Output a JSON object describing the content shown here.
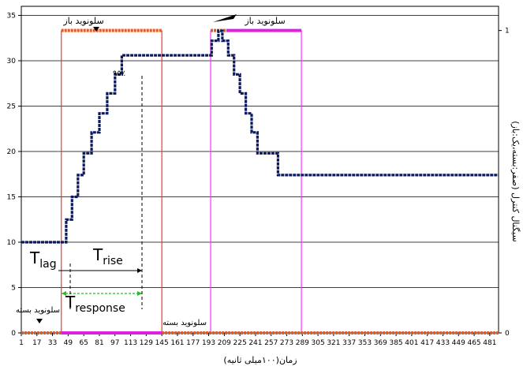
{
  "chart_data": {
    "type": "line",
    "xlabel": "زمان(۱۰۰میلی ثانیه)",
    "y2label": "سیگنال کنترل (صفر:بسته،یک:باز)",
    "ylim": [
      0,
      36
    ],
    "y2lim": [
      0,
      1.08
    ],
    "yticks": [
      0,
      5,
      10,
      15,
      20,
      25,
      30,
      35
    ],
    "y2ticks": [
      0,
      1
    ],
    "xticks": [
      "1",
      "17",
      "33",
      "49",
      "65",
      "81",
      "97",
      "113",
      "129",
      "145",
      "161",
      "177",
      "193",
      "209",
      "225",
      "241",
      "257",
      "273",
      "289",
      "305",
      "321",
      "337",
      "353",
      "369",
      "385",
      "401",
      "417",
      "433",
      "449",
      "465",
      "481"
    ],
    "xlim": [
      1,
      490
    ],
    "grid": "horizontal",
    "series": [
      {
        "role": "response",
        "color": "#0b1a5e",
        "points": [
          [
            1,
            10
          ],
          [
            42,
            10
          ],
          [
            47,
            10
          ],
          [
            47,
            12.5
          ],
          [
            53,
            12.5
          ],
          [
            53,
            15
          ],
          [
            59,
            15
          ],
          [
            59,
            17.4
          ],
          [
            65,
            17.4
          ],
          [
            65,
            19.8
          ],
          [
            73,
            19.8
          ],
          [
            73,
            22.1
          ],
          [
            81,
            22.1
          ],
          [
            81,
            24.2
          ],
          [
            89,
            24.2
          ],
          [
            89,
            26.4
          ],
          [
            97,
            26.4
          ],
          [
            97,
            28.5
          ],
          [
            104,
            28.5
          ],
          [
            104,
            30.6
          ],
          [
            187,
            30.6
          ],
          [
            196,
            30.6
          ],
          [
            196,
            32.2
          ],
          [
            203,
            32.2
          ],
          [
            203,
            33.3
          ],
          [
            207,
            33.3
          ],
          [
            207,
            32.2
          ],
          [
            213,
            32.2
          ],
          [
            213,
            30.6
          ],
          [
            219,
            30.6
          ],
          [
            219,
            28.5
          ],
          [
            225,
            28.5
          ],
          [
            225,
            26.4
          ],
          [
            231,
            26.4
          ],
          [
            231,
            24.2
          ],
          [
            237,
            24.2
          ],
          [
            237,
            22.1
          ],
          [
            243,
            22.1
          ],
          [
            243,
            19.8
          ],
          [
            264,
            19.8
          ],
          [
            264,
            17.4
          ],
          [
            490,
            17.4
          ]
        ]
      },
      {
        "role": "signal",
        "color": "#e85a20",
        "segments": [
          [
            [
              1,
              0
            ],
            [
              42,
              0
            ]
          ],
          [
            [
              42,
              1
            ],
            [
              145,
              1
            ]
          ],
          [
            [
              145,
              0
            ],
            [
              490,
              0
            ]
          ],
          [
            [
              187,
              0
            ],
            [
              195,
              0
            ]
          ],
          [
            [
              195,
              1
            ],
            [
              211,
              1
            ]
          ]
        ]
      },
      {
        "role": "signal-2",
        "color": "#e020e0",
        "segments": [
          [
            [
              42,
              0
            ],
            [
              145,
              0
            ]
          ],
          [
            [
              211,
              1
            ],
            [
              288,
              1
            ]
          ]
        ]
      }
    ],
    "vlines": [
      {
        "x": 42,
        "color": "#ff3030"
      },
      {
        "x": 145,
        "color": "#ff3030"
      },
      {
        "x": 195,
        "color": "#ff30ff"
      },
      {
        "x": 288,
        "color": "#ff30ff"
      }
    ],
    "annotations": {
      "solenoid_open_1": "سلونوید باز",
      "solenoid_open_2": "سلونوید باز",
      "solenoid_closed_1": "سلونوید بسته",
      "solenoid_closed_2": "سلونوید بسته",
      "pct95": "۹۵٪",
      "t_lag": "T",
      "t_lag_sub": "lag",
      "t_rise": "T",
      "t_rise_sub": "rise",
      "t_response": "T",
      "t_response_sub": "response"
    }
  }
}
